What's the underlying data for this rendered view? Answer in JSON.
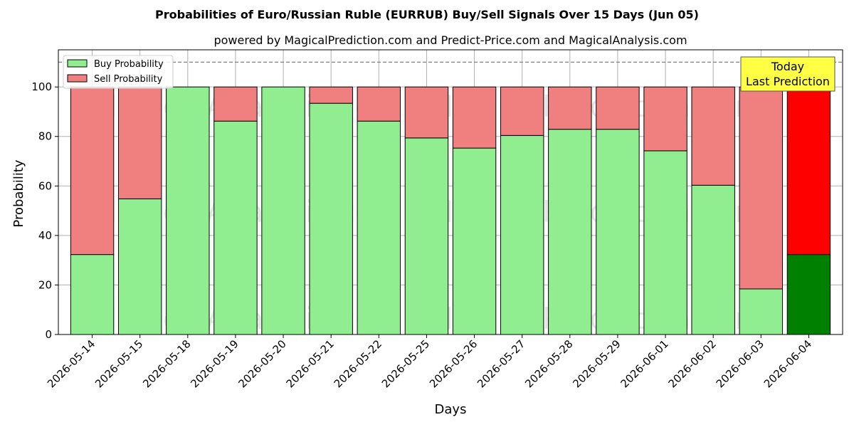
{
  "chart_data": {
    "type": "bar",
    "stacked": true,
    "title": "Probabilities of Euro/Russian Ruble (EURRUB) Buy/Sell Signals Over 15 Days (Jun 05)",
    "subtitle": "powered by MagicalPrediction.com and Predict-Price.com and MagicalAnalysis.com",
    "xlabel": "Days",
    "ylabel": "Probability",
    "ylim": [
      0,
      115
    ],
    "yticks": [
      0,
      20,
      40,
      60,
      80,
      100
    ],
    "grid": true,
    "legend_position": "top-left",
    "reference_line": 110,
    "categories": [
      "2026-05-14",
      "2026-05-15",
      "2026-05-18",
      "2026-05-19",
      "2026-05-20",
      "2026-05-21",
      "2026-05-22",
      "2026-05-25",
      "2026-05-26",
      "2026-05-27",
      "2026-05-28",
      "2026-05-29",
      "2026-06-01",
      "2026-06-02",
      "2026-06-03",
      "2026-06-04"
    ],
    "series": [
      {
        "name": "Buy Probability",
        "color": "#90ee90",
        "highlight_color": "#008000",
        "values": [
          32.3,
          54.8,
          100,
          86.2,
          100,
          93.4,
          86.2,
          79.4,
          75.3,
          80.4,
          82.9,
          82.9,
          74.2,
          60.3,
          18.4,
          32.3
        ]
      },
      {
        "name": "Sell Probability",
        "color": "#f08080",
        "highlight_color": "#ff0000",
        "values": [
          67.7,
          45.2,
          0,
          13.8,
          0,
          6.6,
          13.8,
          20.6,
          24.7,
          19.6,
          17.1,
          17.1,
          25.8,
          39.7,
          81.6,
          67.7
        ]
      }
    ],
    "highlight_index": 15,
    "annotation": {
      "lines": [
        "Today",
        "Last Prediction"
      ],
      "bg": "#ffff44"
    },
    "watermarks": [
      "MagicalAnalysis.com",
      "MagicalPrediction.com"
    ]
  }
}
